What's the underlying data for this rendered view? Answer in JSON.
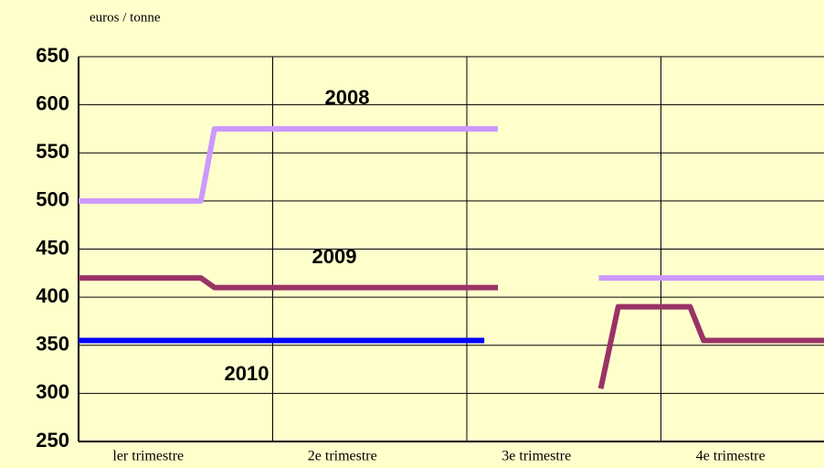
{
  "chart_data": {
    "type": "line",
    "y_label": "euros / tonne",
    "categories": [
      "ler trimestre",
      "2e trimestre",
      "3e trimestre",
      "4e trimestre"
    ],
    "xlim": [
      0,
      3.84
    ],
    "ylim": [
      250,
      650
    ],
    "yticks": [
      250,
      300,
      350,
      400,
      450,
      500,
      550,
      600,
      650
    ],
    "grid": true,
    "series": [
      {
        "name": "2008",
        "color": "#cc99ff",
        "x": [
          0,
          0.63,
          0.7,
          2.16,
          null,
          2.68,
          3.84
        ],
        "values": [
          500,
          500,
          575,
          575,
          null,
          420,
          420
        ]
      },
      {
        "name": "2009",
        "color": "#993366",
        "x": [
          0,
          0.63,
          0.7,
          2.16,
          null,
          2.69,
          2.78,
          3.15,
          3.22,
          3.84
        ],
        "values": [
          420,
          420,
          410,
          410,
          null,
          305,
          390,
          390,
          355,
          355
        ]
      },
      {
        "name": "2010",
        "color": "#0000ff",
        "x": [
          0,
          2.09
        ],
        "values": [
          355,
          355
        ]
      }
    ]
  }
}
